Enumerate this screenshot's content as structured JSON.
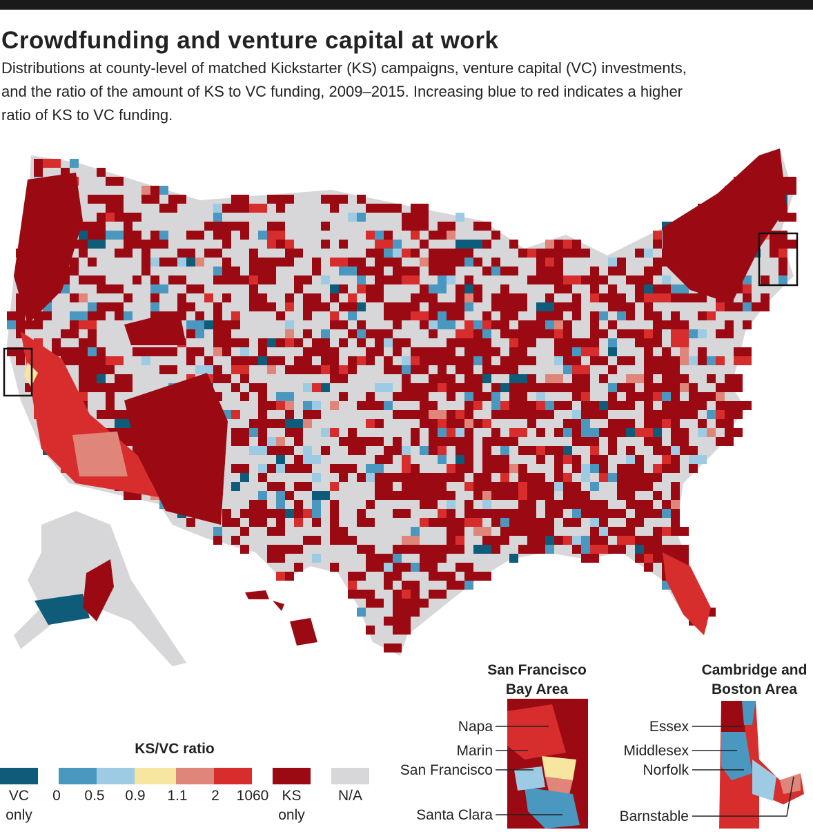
{
  "header": {
    "title": "Crowdfunding and venture capital at work",
    "subtitle_lines": [
      "Distributions at county-level of matched Kickstarter (KS) campaigns, venture capital (VC) investments,",
      "and the ratio of the amount of KS to VC funding, 2009–2015. Increasing blue to red indicates a higher",
      "ratio of KS to VC funding."
    ]
  },
  "legend": {
    "title": "KS/VC ratio",
    "swatches": [
      {
        "color": "#0e5b7a",
        "label_lines": [
          "VC",
          "only"
        ]
      },
      {
        "color": "#4a98c0"
      },
      {
        "color": "#9ccbe3"
      },
      {
        "color": "#f7e6a0"
      },
      {
        "color": "#e0857a"
      },
      {
        "color": "#d72d2d"
      },
      {
        "color": "#9b0a13",
        "label_lines": [
          "KS",
          "only"
        ]
      },
      {
        "color": "#d7d7d9",
        "label_lines": [
          "N/A"
        ]
      }
    ],
    "breaks": [
      "0",
      "0.5",
      "0.9",
      "1.1",
      "2",
      "1060"
    ]
  },
  "insets": [
    {
      "title_lines": [
        "San Francisco",
        "Bay Area"
      ],
      "labels": [
        "Napa",
        "Marin",
        "San Francisco",
        "Santa Clara"
      ]
    },
    {
      "title_lines": [
        "Cambridge and",
        "Boston Area"
      ],
      "labels": [
        "Essex",
        "Middlesex",
        "Norfolk",
        "Barnstable"
      ]
    }
  ]
}
